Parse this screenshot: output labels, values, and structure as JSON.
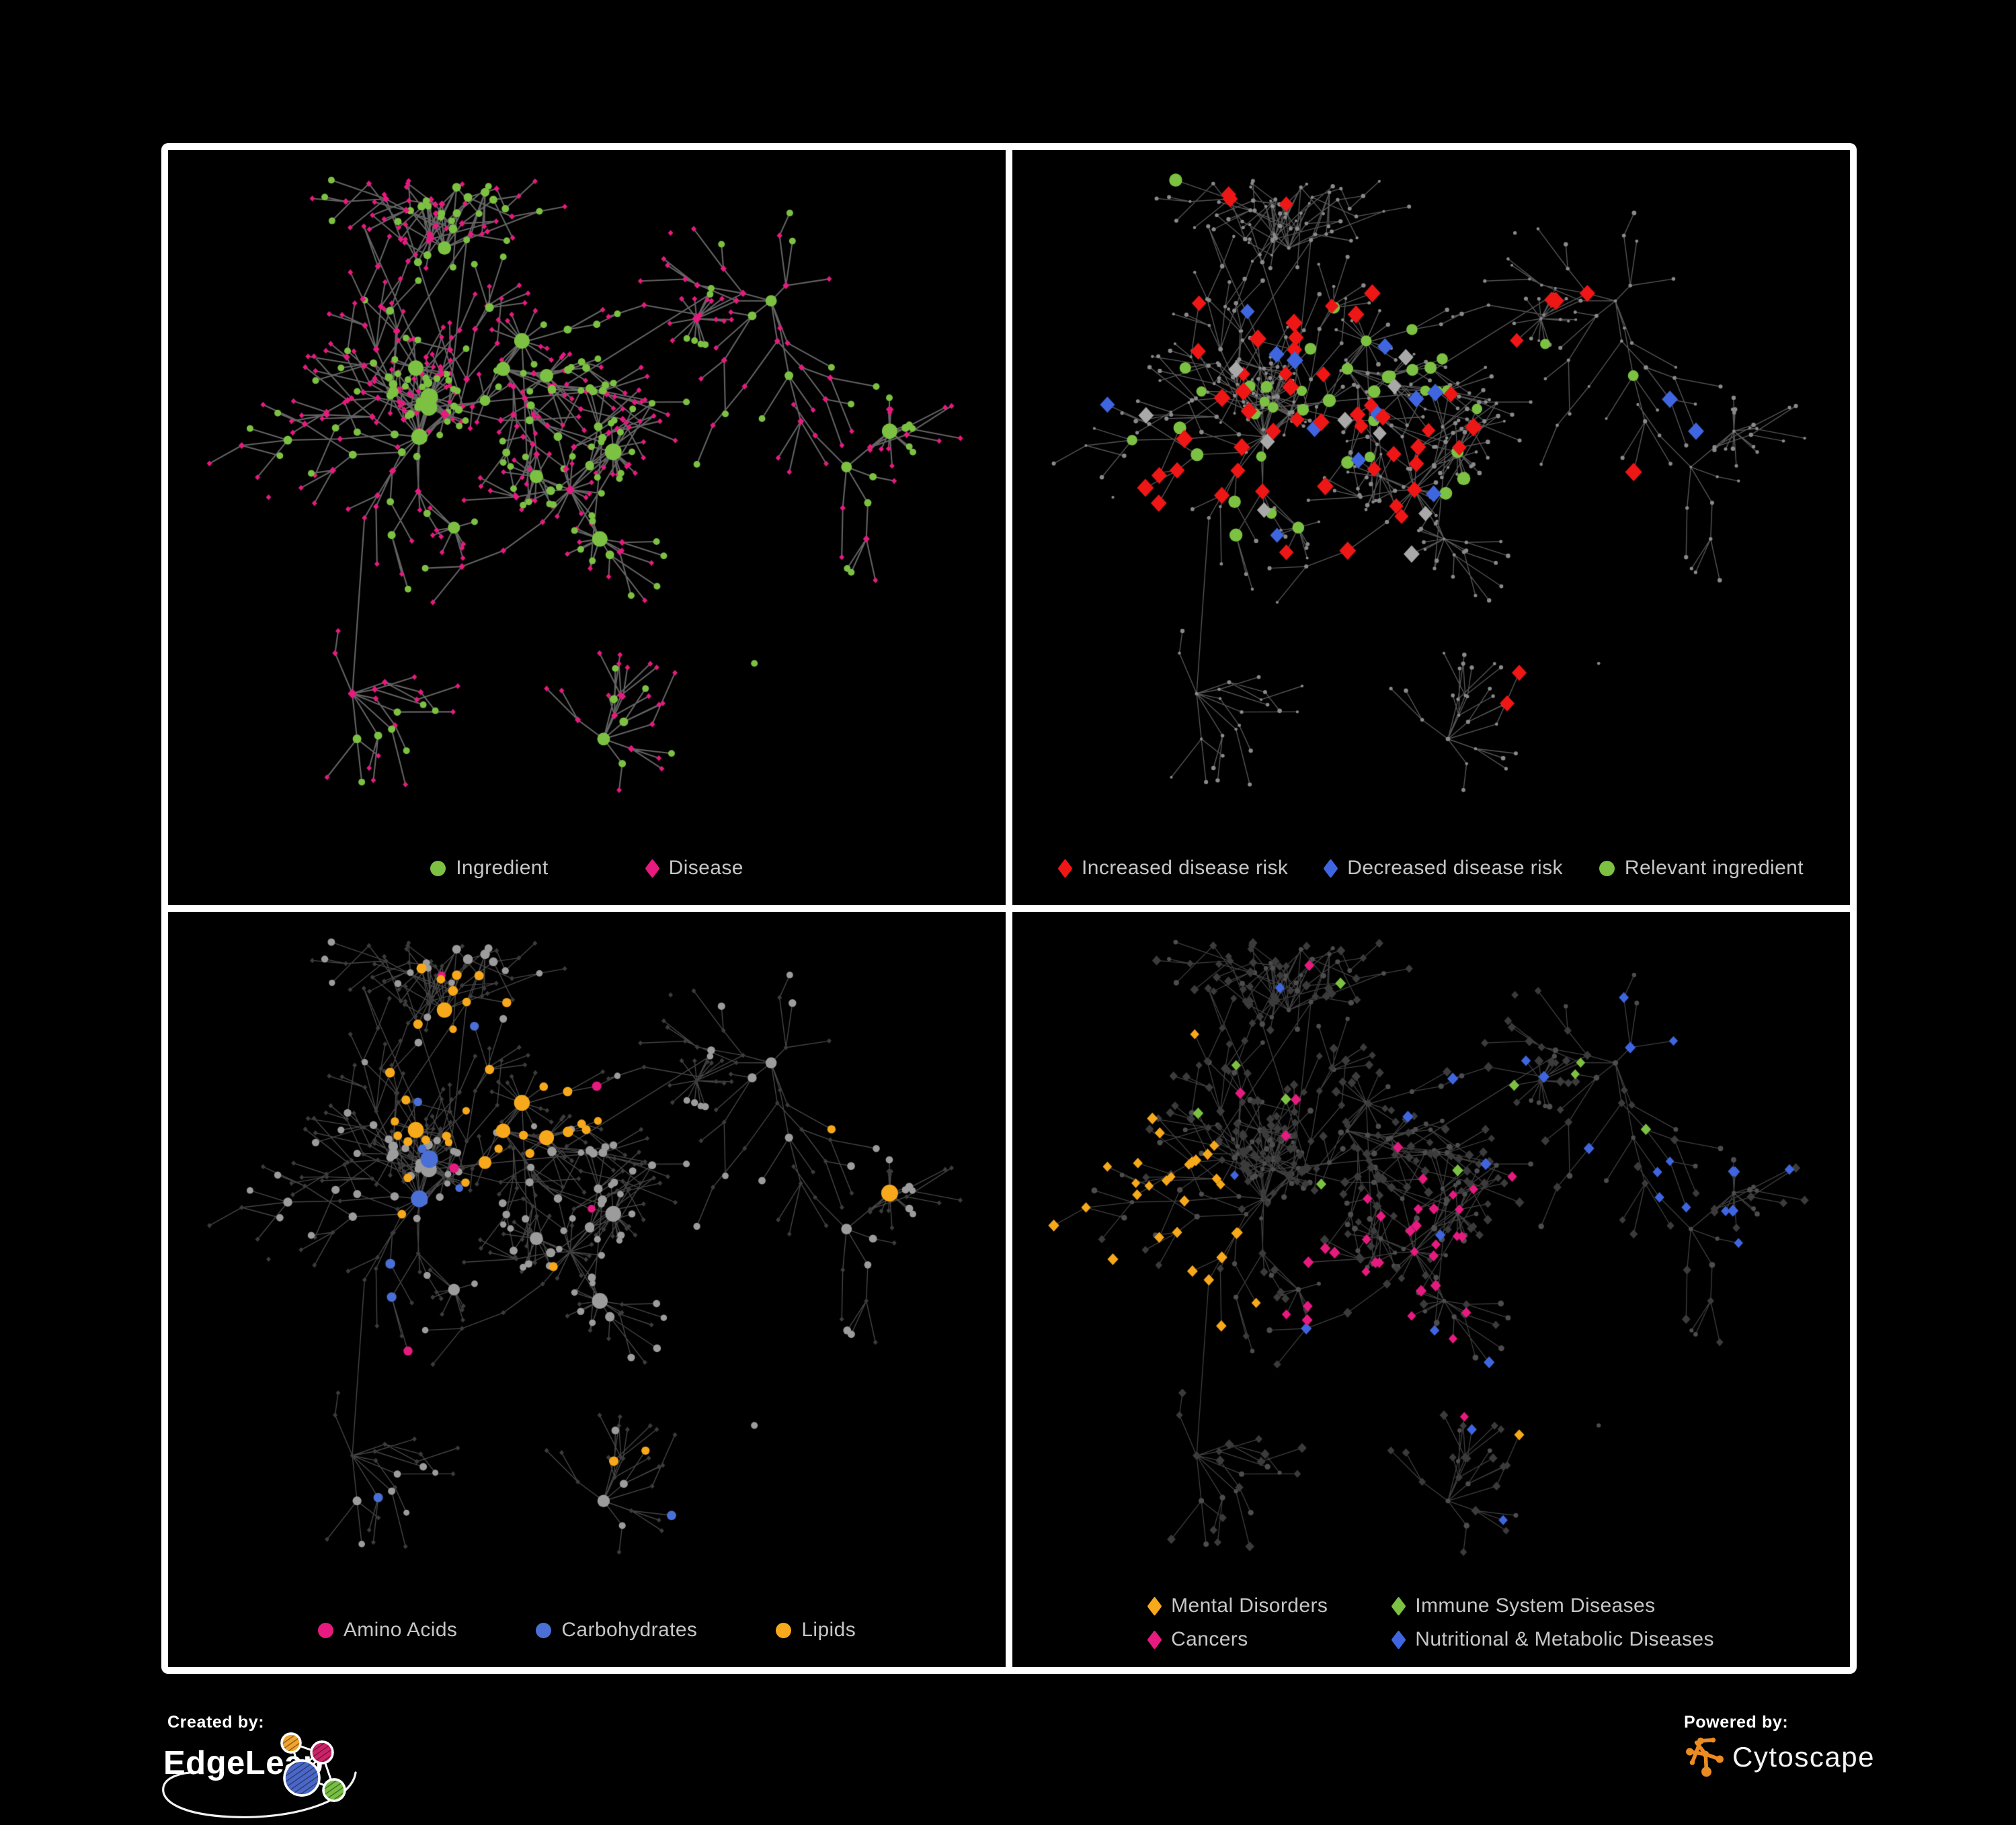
{
  "colors": {
    "green": "#7CC142",
    "pink": "#E61A7F",
    "red": "#EF1616",
    "blue": "#3F66E0",
    "blue2": "#4A6FD6",
    "orange": "#F7A81B",
    "gray_highlight": "#A9A9A9",
    "legend_text": "#C6C6C6",
    "panel_border": "#FFFFFF",
    "background": "#000000"
  },
  "panels": [
    {
      "id": "ingredient-disease",
      "legend_rows": [
        [
          {
            "label": "Ingredient",
            "shape": "circle",
            "color": "#7CC142"
          },
          {
            "label": "Disease",
            "shape": "diamond",
            "color": "#E61A7F"
          }
        ]
      ]
    },
    {
      "id": "disease-risk",
      "legend_rows": [
        [
          {
            "label": "Increased disease risk",
            "shape": "diamond",
            "color": "#EF1616"
          },
          {
            "label": "Decreased disease risk",
            "shape": "diamond",
            "color": "#3F66E0"
          },
          {
            "label": "Relevant ingredient",
            "shape": "circle",
            "color": "#7CC142"
          }
        ]
      ]
    },
    {
      "id": "nutrient-classes",
      "legend_rows": [
        [
          {
            "label": "Amino Acids",
            "shape": "circle",
            "color": "#E61A7F"
          },
          {
            "label": "Carbohydrates",
            "shape": "circle",
            "color": "#4A6FD6"
          },
          {
            "label": "Lipids",
            "shape": "circle",
            "color": "#F7A81B"
          }
        ]
      ]
    },
    {
      "id": "disease-classes",
      "legend_rows": [
        [
          {
            "label": "Mental Disorders",
            "shape": "diamond",
            "color": "#F7A81B"
          },
          {
            "label": "Immune System Diseases",
            "shape": "diamond",
            "color": "#7CC142"
          }
        ],
        [
          {
            "label": "Cancers",
            "shape": "diamond",
            "color": "#E61A7F"
          },
          {
            "label": "Nutritional & Metabolic Diseases",
            "shape": "diamond",
            "color": "#3F66E0"
          }
        ]
      ]
    }
  ],
  "footer": {
    "created_by": "Created by:",
    "edgeleap": "EdgeLeap",
    "powered_by": "Powered by:",
    "cytoscape": "Cytoscape"
  }
}
